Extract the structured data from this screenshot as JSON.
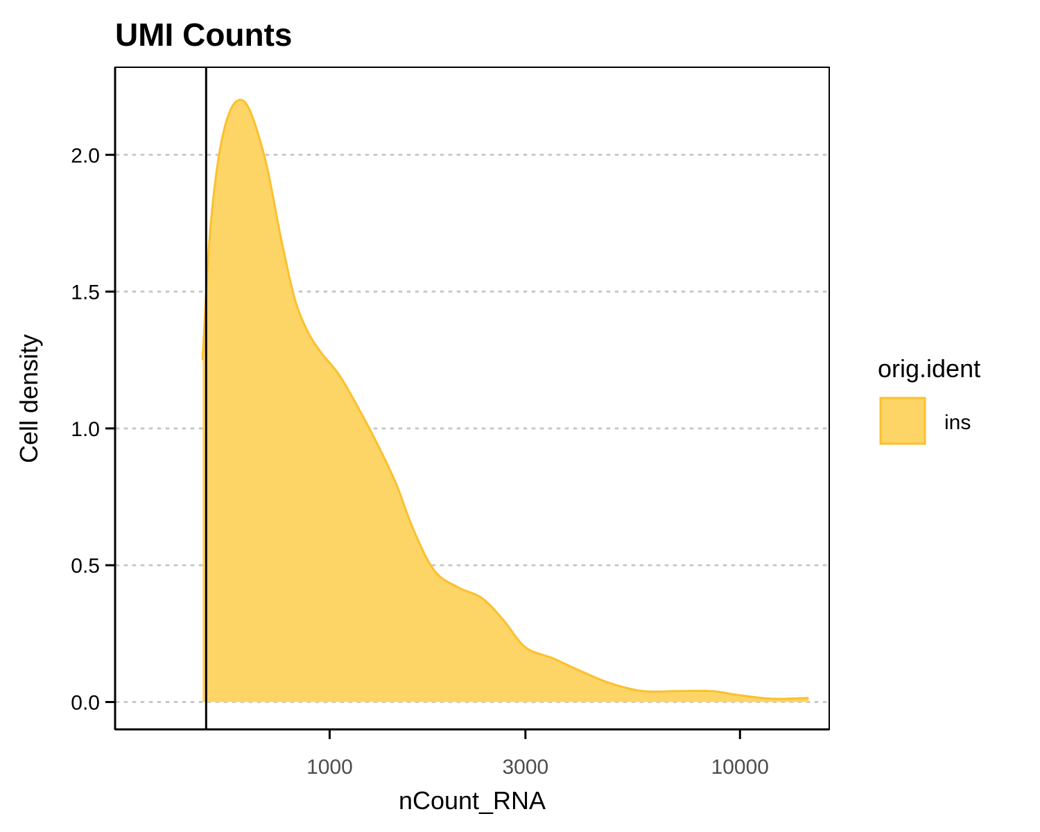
{
  "chart_data": {
    "type": "area",
    "title": "UMI Counts",
    "xlabel": "nCount_RNA",
    "ylabel": "Cell density",
    "x_scale": "log10",
    "xlim": [
      300,
      16500
    ],
    "ylim": [
      -0.1,
      2.32
    ],
    "x_ticks": [
      {
        "value": 1000,
        "label": "1000"
      },
      {
        "value": 3000,
        "label": "3000"
      },
      {
        "value": 10000,
        "label": "10000"
      }
    ],
    "y_ticks": [
      {
        "value": 0,
        "label": "0.0"
      },
      {
        "value": 0.5,
        "label": "0.5"
      },
      {
        "value": 1,
        "label": "1.0"
      },
      {
        "value": 1.5,
        "label": "1.5"
      },
      {
        "value": 2,
        "label": "2.0"
      }
    ],
    "grid": {
      "major_y": true,
      "style": "dotted"
    },
    "legend": {
      "title": "orig.ident",
      "position": "right"
    },
    "threshold_line": {
      "x": 500
    },
    "series": [
      {
        "name": "ins",
        "color": "#fbc02d",
        "fill": "#fdd466",
        "points": [
          [
            490,
            1.25
          ],
          [
            510,
            1.7
          ],
          [
            535,
            1.98
          ],
          [
            565,
            2.14
          ],
          [
            600,
            2.2
          ],
          [
            640,
            2.16
          ],
          [
            700,
            1.97
          ],
          [
            760,
            1.7
          ],
          [
            820,
            1.48
          ],
          [
            880,
            1.36
          ],
          [
            950,
            1.28
          ],
          [
            1050,
            1.2
          ],
          [
            1150,
            1.1
          ],
          [
            1300,
            0.95
          ],
          [
            1450,
            0.8
          ],
          [
            1600,
            0.63
          ],
          [
            1800,
            0.48
          ],
          [
            2050,
            0.42
          ],
          [
            2350,
            0.38
          ],
          [
            2650,
            0.3
          ],
          [
            3000,
            0.2
          ],
          [
            3500,
            0.16
          ],
          [
            4000,
            0.12
          ],
          [
            4800,
            0.07
          ],
          [
            5800,
            0.04
          ],
          [
            7000,
            0.04
          ],
          [
            8500,
            0.04
          ],
          [
            10000,
            0.025
          ],
          [
            12000,
            0.012
          ],
          [
            14700,
            0.015
          ]
        ]
      }
    ]
  }
}
